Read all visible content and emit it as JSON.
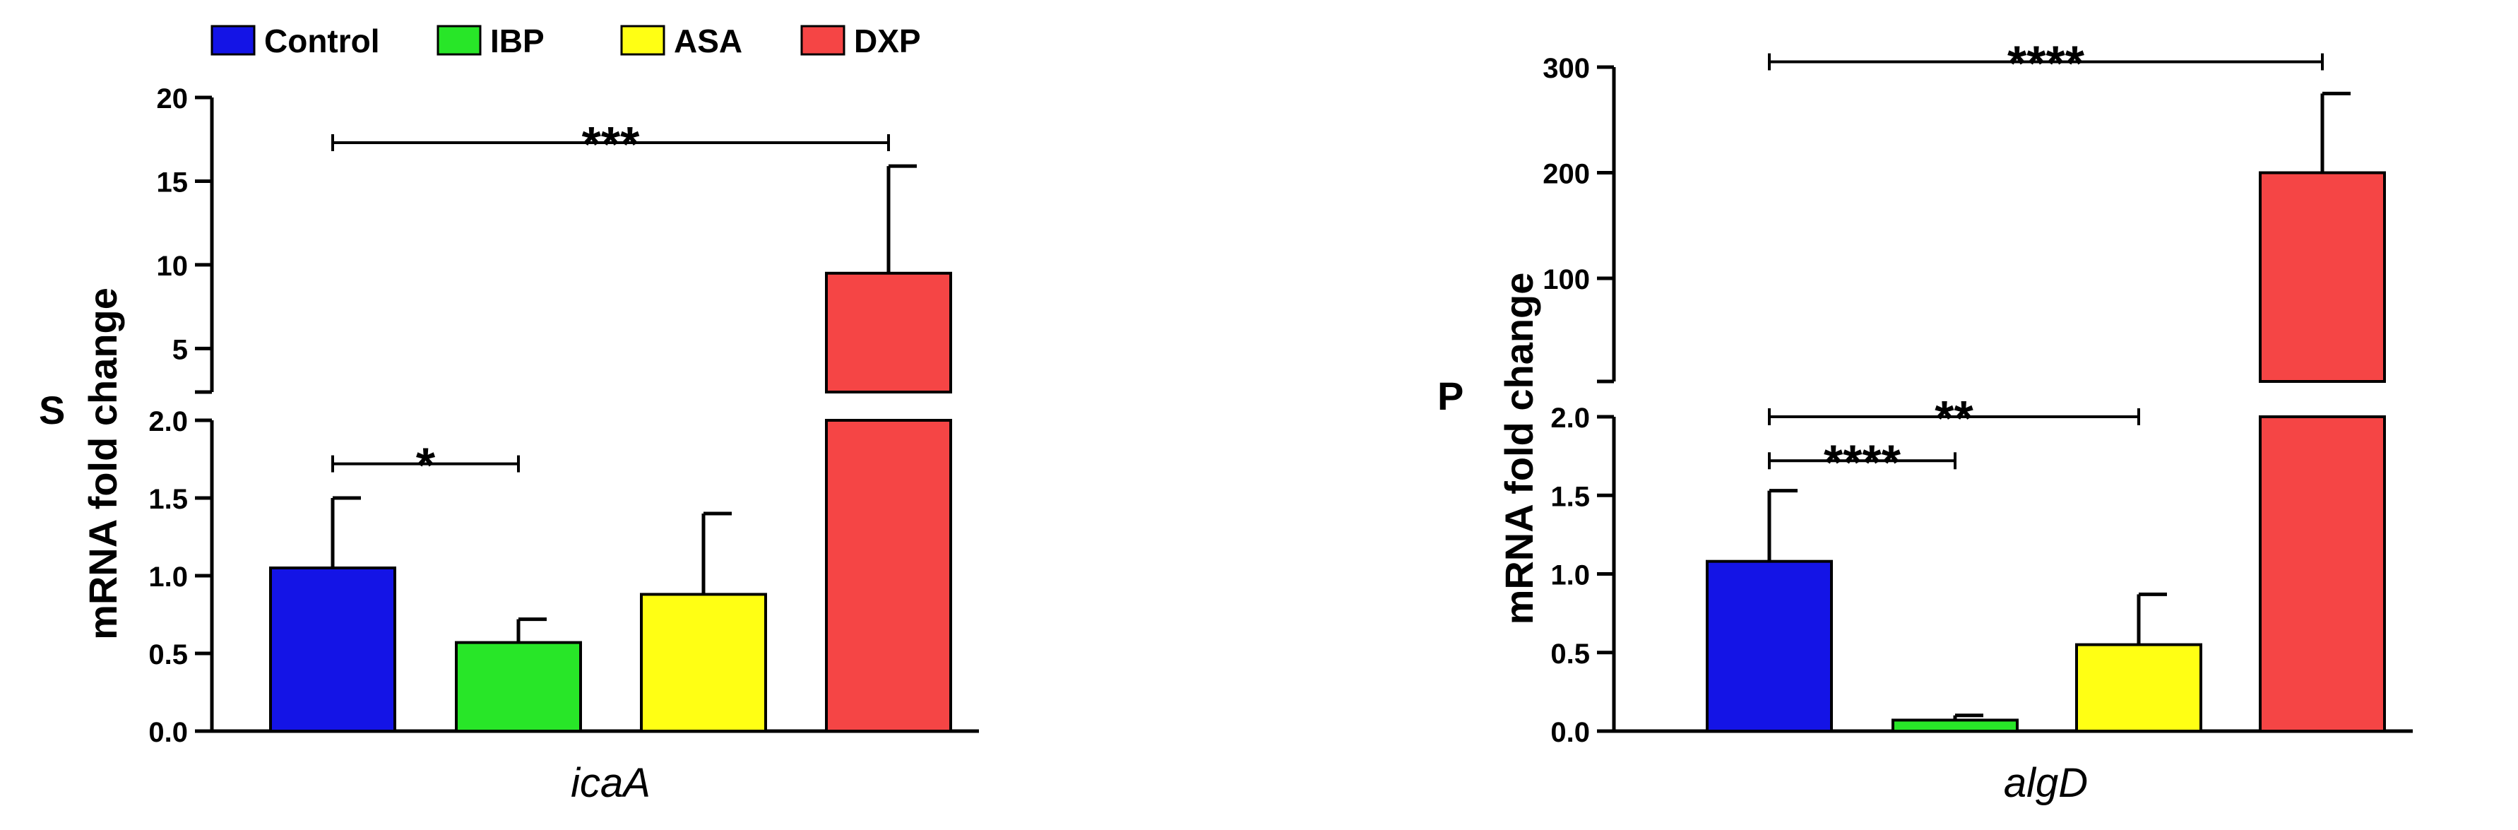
{
  "legend": {
    "items": [
      {
        "label": "Control",
        "color": "#1414e6"
      },
      {
        "label": "IBP",
        "color": "#28e628"
      },
      {
        "label": "ASA",
        "color": "#ffff14"
      },
      {
        "label": "DXP",
        "color": "#f54545"
      }
    ]
  },
  "chart_data": [
    {
      "type": "bar",
      "panel_label": "S",
      "categories": [
        "Control",
        "IBP",
        "ASA",
        "DXP"
      ],
      "values": [
        1.05,
        0.57,
        0.88,
        9.5
      ],
      "errors": [
        0.45,
        0.15,
        0.52,
        6.4
      ],
      "colors": [
        "#1414e6",
        "#28e628",
        "#ffff14",
        "#f54545"
      ],
      "xlabel": "icaA",
      "ylabel": "mRNA fold change",
      "axis_break": true,
      "ylim_lower": [
        0,
        2.0
      ],
      "yticks_lower": [
        "0.0",
        "0.5",
        "1.0",
        "1.5",
        "2.0"
      ],
      "ylim_upper": [
        2.4,
        20
      ],
      "yticks_upper": [
        "5",
        "10",
        "15",
        "20"
      ],
      "significance": [
        {
          "from": 0,
          "to": 1,
          "label": "*",
          "level": 1.72,
          "axis": "lower"
        },
        {
          "from": 0,
          "to": 3,
          "label": "***",
          "level": 17.3,
          "axis": "upper"
        }
      ]
    },
    {
      "type": "bar",
      "panel_label": "P",
      "categories": [
        "Control",
        "IBP",
        "ASA",
        "DXP"
      ],
      "values": [
        1.08,
        0.07,
        0.55,
        200
      ],
      "errors": [
        0.45,
        0.03,
        0.32,
        75
      ],
      "colors": [
        "#1414e6",
        "#28e628",
        "#ffff14",
        "#f54545"
      ],
      "xlabel": "algD",
      "ylabel": "mRNA fold change",
      "axis_break": true,
      "ylim_lower": [
        0,
        2.0
      ],
      "yticks_lower": [
        "0.0",
        "0.5",
        "1.0",
        "1.5",
        "2.0"
      ],
      "ylim_upper": [
        2.4,
        300
      ],
      "yticks_upper": [
        "100",
        "200",
        "300"
      ],
      "significance": [
        {
          "from": 0,
          "to": 1,
          "label": "****",
          "level": 1.72,
          "axis": "lower"
        },
        {
          "from": 0,
          "to": 2,
          "label": "**",
          "level": 2.0,
          "axis": "lower"
        },
        {
          "from": 0,
          "to": 3,
          "label": "****",
          "level": 305,
          "axis": "upper"
        }
      ]
    }
  ]
}
